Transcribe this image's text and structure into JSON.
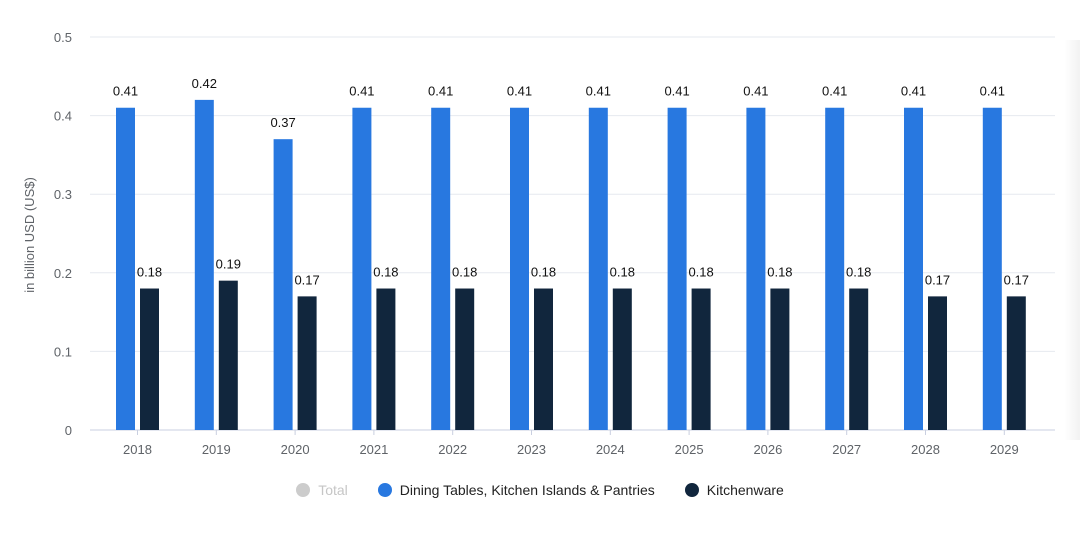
{
  "chart_data": {
    "type": "bar",
    "title": "",
    "xlabel": "",
    "ylabel": "in billion USD (US$)",
    "ylim": [
      0,
      0.5
    ],
    "yticks": [
      "0",
      "0.1",
      "0.2",
      "0.3",
      "0.4",
      "0.5"
    ],
    "ytick_values": [
      0,
      0.1,
      0.2,
      0.3,
      0.4,
      0.5
    ],
    "categories": [
      "2018",
      "2019",
      "2020",
      "2021",
      "2022",
      "2023",
      "2024",
      "2025",
      "2026",
      "2027",
      "2028",
      "2029"
    ],
    "series": [
      {
        "name": "Dining Tables, Kitchen Islands & Pantries",
        "color": "#2878e0",
        "values": [
          0.41,
          0.42,
          0.37,
          0.41,
          0.41,
          0.41,
          0.41,
          0.41,
          0.41,
          0.41,
          0.41,
          0.41
        ],
        "labels": [
          "0.41",
          "0.42",
          "0.37",
          "0.41",
          "0.41",
          "0.41",
          "0.41",
          "0.41",
          "0.41",
          "0.41",
          "0.41",
          "0.41"
        ]
      },
      {
        "name": "Kitchenware",
        "color": "#11263d",
        "values": [
          0.18,
          0.19,
          0.17,
          0.18,
          0.18,
          0.18,
          0.18,
          0.18,
          0.18,
          0.18,
          0.17,
          0.17
        ],
        "labels": [
          "0.18",
          "0.19",
          "0.17",
          "0.18",
          "0.18",
          "0.18",
          "0.18",
          "0.18",
          "0.18",
          "0.18",
          "0.17",
          "0.17"
        ]
      }
    ],
    "legend": [
      {
        "name": "Total",
        "color": "#cccccc",
        "disabled": true
      },
      {
        "name": "Dining Tables, Kitchen Islands & Pantries",
        "color": "#2878e0",
        "disabled": false
      },
      {
        "name": "Kitchenware",
        "color": "#11263d",
        "disabled": false
      }
    ],
    "grid": true,
    "legend_position": "bottom-center"
  }
}
